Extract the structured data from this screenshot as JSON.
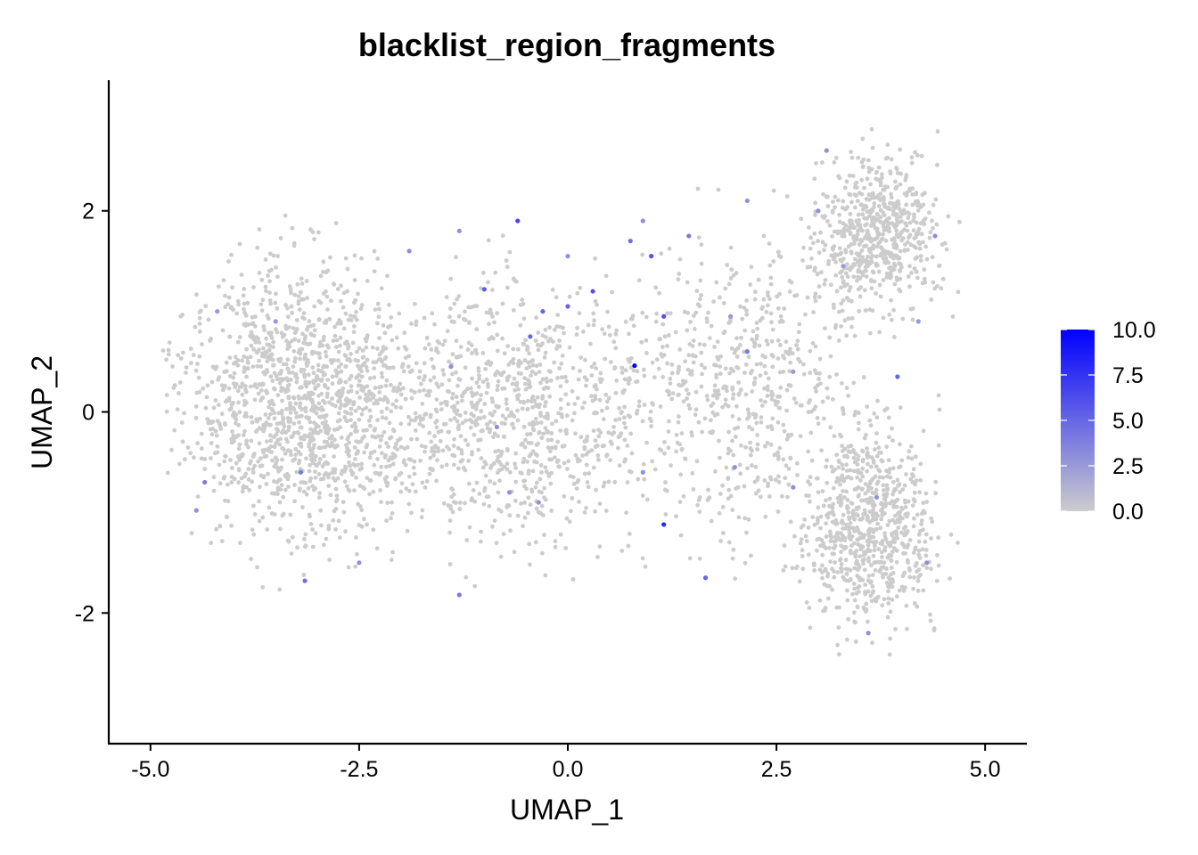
{
  "chart_data": {
    "type": "scatter",
    "title": "blacklist_region_fragments",
    "xlabel": "UMAP_1",
    "ylabel": "UMAP_2",
    "xlim": [
      -5.5,
      5.5
    ],
    "ylim": [
      -3.3,
      3.3
    ],
    "x_ticks": [
      {
        "value": -5.0,
        "label": "-5.0"
      },
      {
        "value": -2.5,
        "label": "-2.5"
      },
      {
        "value": 0.0,
        "label": "0.0"
      },
      {
        "value": 2.5,
        "label": "2.5"
      },
      {
        "value": 5.0,
        "label": "5.0"
      }
    ],
    "y_ticks": [
      {
        "value": -2,
        "label": "-2"
      },
      {
        "value": 0,
        "label": "0"
      },
      {
        "value": 2,
        "label": "2"
      }
    ],
    "grid": false,
    "legend": {
      "placement": "right",
      "type": "colorbar",
      "min": 0.0,
      "max": 10.0,
      "low_color": "#cccccc",
      "high_color": "#0000ff",
      "ticks": [
        {
          "value": 0.0,
          "label": "0.0"
        },
        {
          "value": 2.5,
          "label": "2.5"
        },
        {
          "value": 5.0,
          "label": "5.0"
        },
        {
          "value": 7.5,
          "label": "7.5"
        },
        {
          "value": 10.0,
          "label": "10.0"
        }
      ]
    },
    "background_points_note_excluded": true,
    "highlighted_points": [
      {
        "x": -0.6,
        "y": 1.9,
        "value": 6.5
      },
      {
        "x": -1.3,
        "y": 1.8,
        "value": 3.0
      },
      {
        "x": -1.0,
        "y": 1.22,
        "value": 5.5
      },
      {
        "x": 1.0,
        "y": 1.55,
        "value": 6.0
      },
      {
        "x": 0.3,
        "y": 1.2,
        "value": 6.0
      },
      {
        "x": 1.15,
        "y": 0.95,
        "value": 6.0
      },
      {
        "x": 0.8,
        "y": 0.46,
        "value": 10.0
      },
      {
        "x": 0.0,
        "y": 1.05,
        "value": 5.0
      },
      {
        "x": -0.3,
        "y": 1.0,
        "value": 5.0
      },
      {
        "x": -0.45,
        "y": 0.75,
        "value": 5.0
      },
      {
        "x": 1.15,
        "y": -1.12,
        "value": 8.0
      },
      {
        "x": 0.75,
        "y": 1.7,
        "value": 4.5
      },
      {
        "x": 1.45,
        "y": 1.75,
        "value": 4.0
      },
      {
        "x": 1.65,
        "y": -1.65,
        "value": 5.0
      },
      {
        "x": -3.15,
        "y": -1.68,
        "value": 4.5
      },
      {
        "x": -3.2,
        "y": -0.6,
        "value": 4.0
      },
      {
        "x": -4.35,
        "y": -0.7,
        "value": 4.0
      },
      {
        "x": -4.45,
        "y": -0.98,
        "value": 3.0
      },
      {
        "x": -1.3,
        "y": -1.82,
        "value": 4.0
      },
      {
        "x": 3.95,
        "y": 0.35,
        "value": 5.0
      },
      {
        "x": 2.15,
        "y": 0.6,
        "value": 4.0
      },
      {
        "x": -1.9,
        "y": 1.6,
        "value": 3.0
      },
      {
        "x": 4.4,
        "y": 1.75,
        "value": 3.0
      },
      {
        "x": 3.1,
        "y": 2.6,
        "value": 3.0
      },
      {
        "x": 3.0,
        "y": 2.0,
        "value": 3.0
      },
      {
        "x": 2.15,
        "y": 2.1,
        "value": 3.0
      },
      {
        "x": 3.6,
        "y": -2.2,
        "value": 3.0
      },
      {
        "x": 0.0,
        "y": 1.55,
        "value": 3.0
      },
      {
        "x": -0.85,
        "y": -0.15,
        "value": 3.0
      },
      {
        "x": -3.5,
        "y": 0.9,
        "value": 2.5
      },
      {
        "x": -4.2,
        "y": 1.0,
        "value": 2.5
      },
      {
        "x": -2.5,
        "y": -1.5,
        "value": 3.0
      },
      {
        "x": 0.9,
        "y": -0.6,
        "value": 3.0
      },
      {
        "x": 2.0,
        "y": -0.55,
        "value": 3.0
      },
      {
        "x": 2.7,
        "y": -0.75,
        "value": 3.0
      },
      {
        "x": 3.7,
        "y": -0.85,
        "value": 3.0
      },
      {
        "x": 4.3,
        "y": -1.5,
        "value": 3.0
      },
      {
        "x": -0.35,
        "y": -0.9,
        "value": 3.0
      },
      {
        "x": 0.9,
        "y": 1.9,
        "value": 3.0
      },
      {
        "x": 1.95,
        "y": 0.95,
        "value": 2.5
      },
      {
        "x": 2.7,
        "y": 0.4,
        "value": 2.5
      },
      {
        "x": -1.4,
        "y": 0.45,
        "value": 3.0
      },
      {
        "x": -0.7,
        "y": -0.8,
        "value": 3.0
      },
      {
        "x": 3.3,
        "y": 1.45,
        "value": 2.5
      },
      {
        "x": 4.2,
        "y": 0.9,
        "value": 2.5
      }
    ]
  }
}
